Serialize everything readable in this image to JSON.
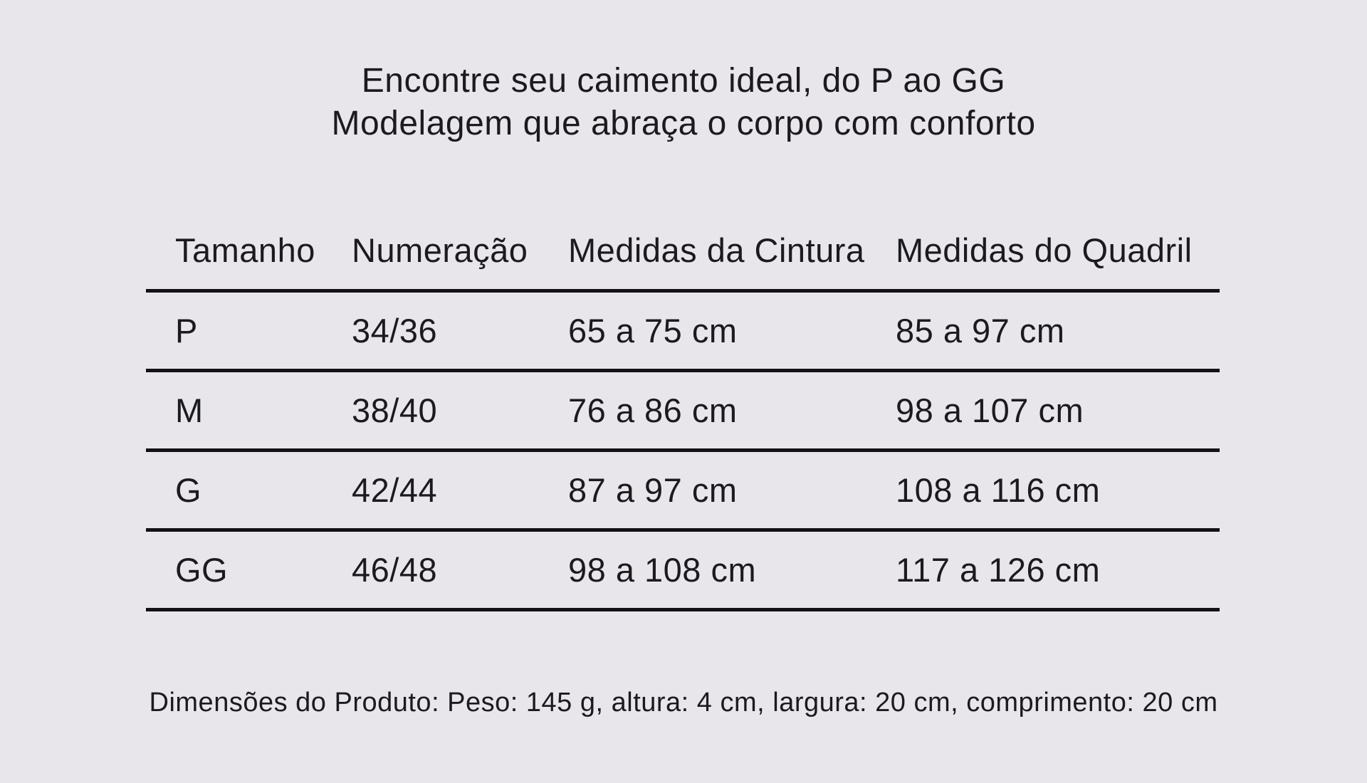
{
  "page": {
    "background_color": "#e8e6ea",
    "text_color": "#1b1a1d",
    "rule_color": "#121114"
  },
  "header": {
    "title_line1": "Encontre seu caimento ideal, do P ao GG",
    "title_line2": "Modelagem que abraça o corpo com conforto"
  },
  "size_table": {
    "columns": [
      "Tamanho",
      "Numeração",
      "Medidas da Cintura",
      "Medidas do Quadril"
    ],
    "rows": [
      {
        "tamanho": "P",
        "numeracao": "34/36",
        "cintura": "65 a 75 cm",
        "quadril": "85 a 97 cm"
      },
      {
        "tamanho": "M",
        "numeracao": "38/40",
        "cintura": "76 a 86 cm",
        "quadril": "98 a 107 cm"
      },
      {
        "tamanho": "G",
        "numeracao": "42/44",
        "cintura": "87 a 97 cm",
        "quadril": "108 a 116 cm"
      },
      {
        "tamanho": "GG",
        "numeracao": "46/48",
        "cintura": "98 a 108 cm",
        "quadril": "117 a 126 cm"
      }
    ]
  },
  "footer": {
    "dimensions_text": "Dimensões do Produto: Peso: 145 g, altura: 4 cm, largura: 20 cm, comprimento: 20 cm"
  }
}
